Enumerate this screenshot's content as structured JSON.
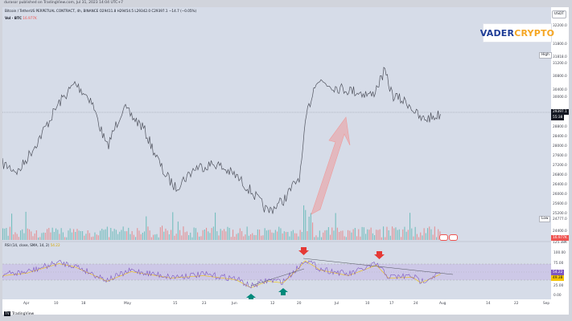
{
  "caption": "durasor published on TradingView.com, Jul 31, 2023 14:04 UTC+7",
  "symbol_line": "Bitcoin / TetherUS PERPETUAL CONTRACT, 4h, BINANCE",
  "ohlc": "O29411.8 H29454.5 L29342.0 C29397.1 −14.7 (−0.05%)",
  "volume_label": "Vol · BTC",
  "volume_value": "16.977K",
  "rsi_label": "RSI (14, close, SMA, 14, 2)",
  "rsi_value": "54.22",
  "currency": "USDT",
  "logo": {
    "part1": "VADER",
    "part2": "CRYPTO"
  },
  "price_ticks": [
    "32200.0",
    "31800.0",
    "31600.0",
    "31200.0",
    "30800.0",
    "30400.0",
    "30000.0",
    "29600.0",
    "28800.0",
    "28400.0",
    "28000.0",
    "27600.0",
    "27200.0",
    "26800.0",
    "26400.0",
    "26000.0",
    "25600.0",
    "25200.0",
    "24800.0",
    "24400.0",
    "24000.0"
  ],
  "high_label": "High",
  "high_value": "31818.0",
  "low_label": "Low",
  "low_value": "24777.0",
  "current_price": "29397.1",
  "countdown": "55:38",
  "volume_tag": "16.977K",
  "volume_axis_value": "125.38K",
  "rsi_ticks": [
    "100.00",
    "75.00",
    "25.00",
    "0.00"
  ],
  "rsi_tag_value": "54.22",
  "rsi_tag2": "49.38",
  "time_ticks": [
    "Apr",
    "10",
    "18",
    "May",
    "15",
    "23",
    "Jun",
    "12",
    "20",
    "Jul",
    "10",
    "17",
    "24",
    "Aug",
    "14",
    "22",
    "Sep"
  ],
  "footer": "TradingView",
  "tv_icon": "tradingview-logo-icon",
  "colors": {
    "up": "#26a69a",
    "down": "#ef5350",
    "rsi": "#7e57c2",
    "rsi_ma": "#f5c400"
  }
}
